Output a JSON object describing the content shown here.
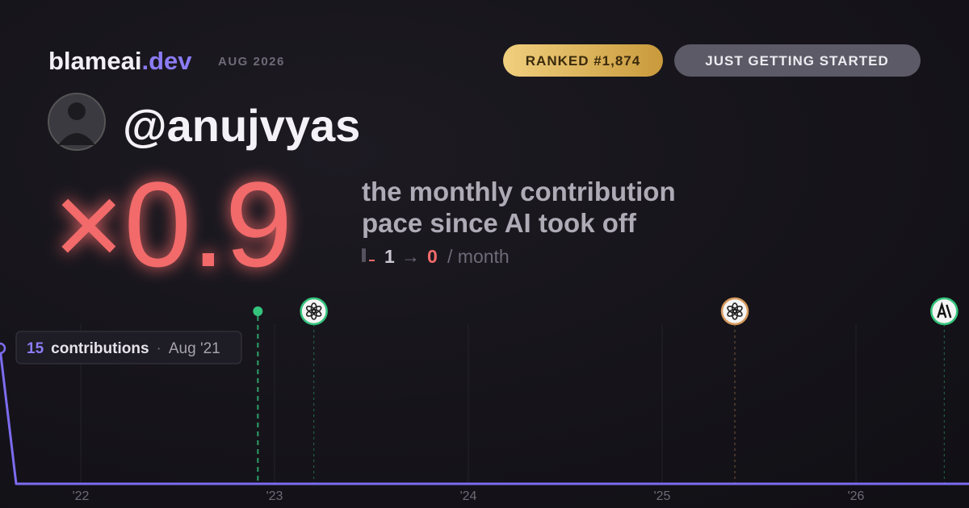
{
  "brand": {
    "name": "blameai",
    "tld": ".dev"
  },
  "period": "AUG 2026",
  "badges": [
    "RANKED #1,874",
    "JUST GETTING STARTED"
  ],
  "username": "@anujvyas",
  "headline": "×0.9",
  "description": [
    "the monthly contribution",
    "pace since AI took off"
  ],
  "pace": {
    "before": 1,
    "arrow": "→",
    "after": 0,
    "unit": "/ month"
  },
  "chart_data": {
    "type": "line",
    "color": "#7c6cf0",
    "x": [
      "2021-08",
      "2021-09",
      "2021-10",
      "2021-11",
      "2021-12",
      "2022-01",
      "2022-02",
      "2022-03",
      "2022-04",
      "2022-05",
      "2022-06",
      "2022-07",
      "2022-08",
      "2022-09",
      "2022-10",
      "2022-11",
      "2022-12",
      "2023-01",
      "2023-02",
      "2023-03",
      "2023-04",
      "2023-05",
      "2023-06",
      "2023-07",
      "2023-08",
      "2023-09",
      "2023-10",
      "2023-11",
      "2023-12",
      "2024-01",
      "2024-02",
      "2024-03",
      "2024-04",
      "2024-05",
      "2024-06",
      "2024-07",
      "2024-08",
      "2024-09",
      "2024-10",
      "2024-11",
      "2024-12",
      "2025-01",
      "2025-02",
      "2025-03",
      "2025-04",
      "2025-05",
      "2025-06",
      "2025-07",
      "2025-08",
      "2025-09",
      "2025-10",
      "2025-11",
      "2025-12",
      "2026-01",
      "2026-02",
      "2026-03",
      "2026-04",
      "2026-05",
      "2026-06",
      "2026-07",
      "2026-08"
    ],
    "values": [
      15,
      0,
      0,
      0,
      0,
      0,
      0,
      0,
      0,
      0,
      0,
      0,
      0,
      0,
      0,
      0,
      0,
      0,
      0,
      0,
      0,
      0,
      0,
      0,
      0,
      0,
      0,
      0,
      0,
      0,
      0,
      0,
      0,
      0,
      0,
      0,
      0,
      0,
      0,
      0,
      0,
      0,
      0,
      0,
      0,
      0,
      0,
      0,
      0,
      0,
      0,
      0,
      0,
      0,
      0,
      0,
      0,
      0,
      0,
      0,
      0
    ],
    "xlim": [
      "2021-08",
      "2026-08"
    ],
    "ylim": [
      0,
      15
    ],
    "xticks": [
      {
        "value": "2022-01",
        "label": "'22"
      },
      {
        "value": "2023-01",
        "label": "'23"
      },
      {
        "value": "2024-01",
        "label": "'24"
      },
      {
        "value": "2025-01",
        "label": "'25"
      },
      {
        "value": "2026-01",
        "label": "'26"
      }
    ],
    "grid": true,
    "events": [
      {
        "x": "2022-11-30",
        "color": "#34c47c",
        "icon": "dot"
      },
      {
        "x": "2023-03-14",
        "color": "#34c47c",
        "icon": "openai"
      },
      {
        "x": "2025-05-16",
        "color": "#d79a5c",
        "icon": "openai"
      },
      {
        "x": "2026-06-15",
        "color": "#34c47c",
        "icon": "anthropic"
      }
    ],
    "tooltip": {
      "label": "contributions",
      "separator": "·",
      "date": "Aug '21"
    }
  }
}
